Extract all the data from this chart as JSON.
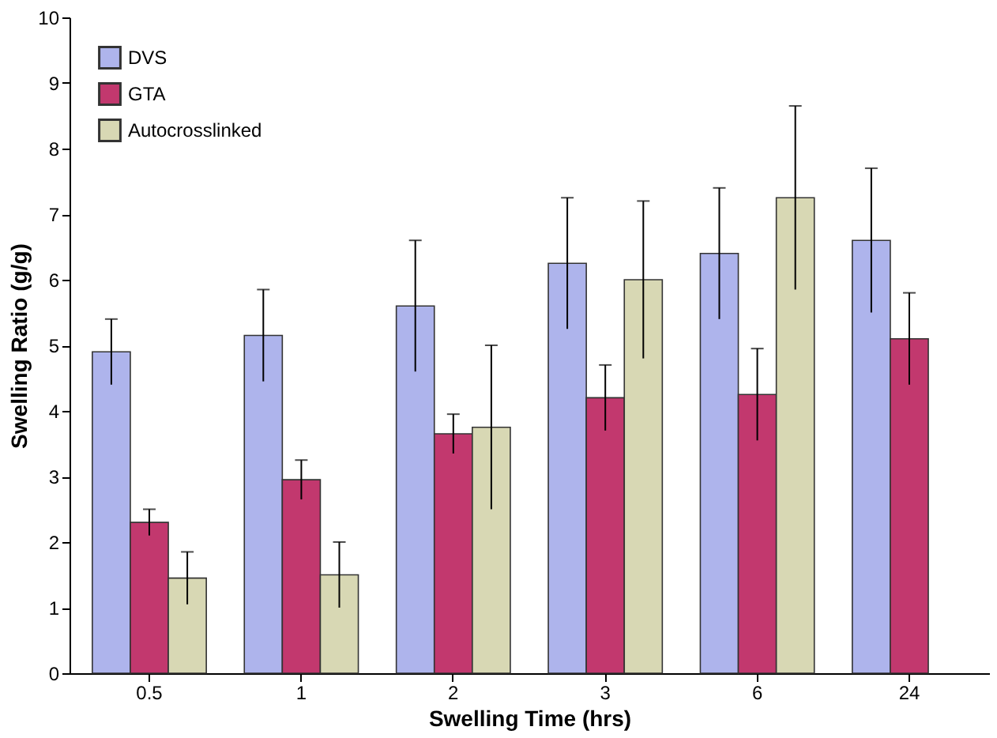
{
  "chart_data": {
    "type": "bar",
    "xlabel": "Swelling Time (hrs)",
    "ylabel": "Swelling Ratio (g/g)",
    "categories": [
      "0.5",
      "1",
      "2",
      "3",
      "6",
      "24"
    ],
    "series": [
      {
        "name": "DVS",
        "color": "#aeb4ec",
        "values": [
          4.9,
          5.15,
          5.6,
          6.25,
          6.4,
          6.6
        ],
        "errors": [
          0.5,
          0.7,
          1.0,
          1.0,
          1.0,
          1.1
        ]
      },
      {
        "name": "GTA",
        "color": "#c2386e",
        "values": [
          2.3,
          2.95,
          3.65,
          4.2,
          4.25,
          5.1
        ],
        "errors": [
          0.2,
          0.3,
          0.3,
          0.5,
          0.7,
          0.7
        ]
      },
      {
        "name": "Autocrosslinked",
        "color": "#d8d8b4",
        "values": [
          1.45,
          1.5,
          3.75,
          6.0,
          7.25,
          null
        ],
        "errors": [
          0.4,
          0.5,
          1.25,
          1.2,
          1.4,
          null
        ]
      }
    ],
    "ylim": [
      0,
      10
    ],
    "yticks": [
      0,
      1,
      2,
      3,
      4,
      5,
      6,
      7,
      8,
      9,
      10
    ],
    "grid": false,
    "legend": "top left"
  }
}
